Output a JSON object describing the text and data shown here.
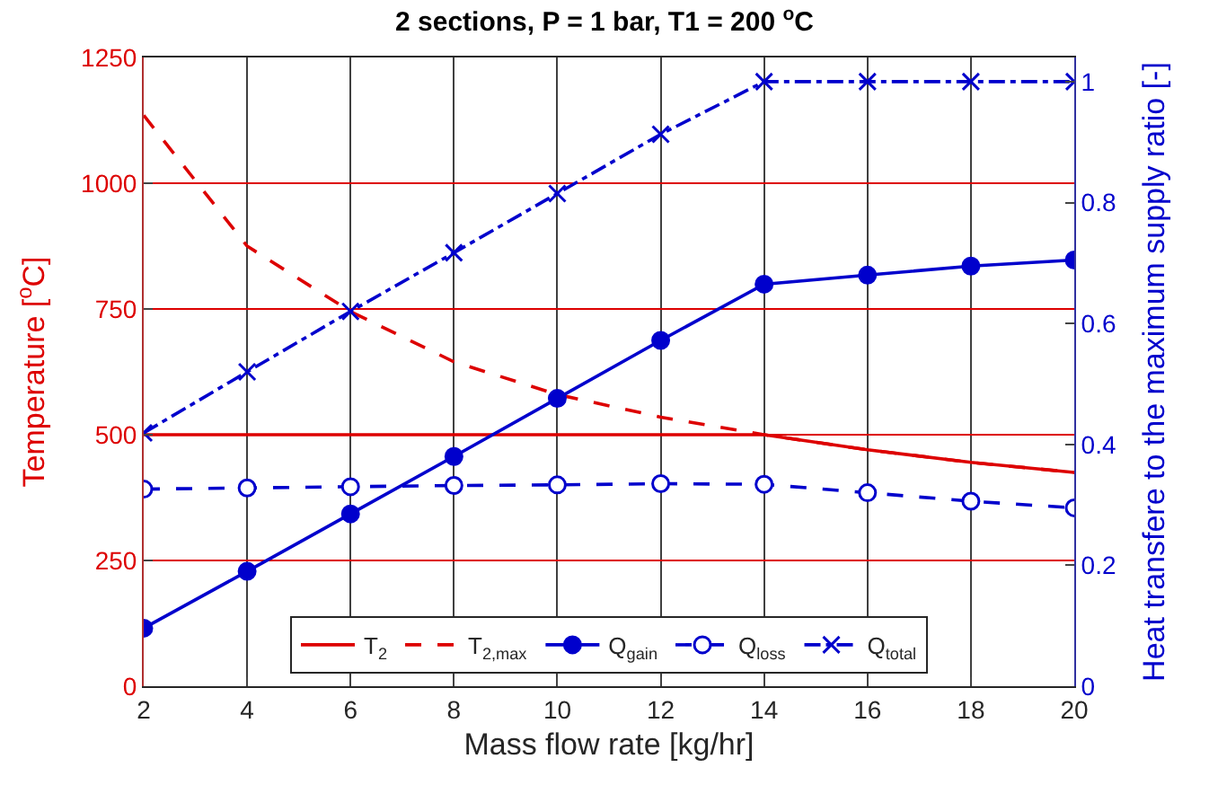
{
  "chart_data": {
    "type": "line",
    "title": "2 sections, P = 1 bar, T1 = 200 $^{o}$C",
    "xlabel": "Mass flow rate [kg/hr]",
    "ylabel": "Temperature [$^{o}$C]",
    "y2label": "Heat transfere to the maximum supply ratio [-]",
    "x": [
      2,
      4,
      6,
      8,
      10,
      12,
      14,
      16,
      18,
      20
    ],
    "xlim": [
      2,
      20
    ],
    "xticks": [
      2,
      4,
      6,
      8,
      10,
      12,
      14,
      16,
      18,
      20
    ],
    "ylim": [
      0,
      1250
    ],
    "yticks": [
      0,
      250,
      500,
      750,
      1000,
      1250
    ],
    "y2lim": [
      0,
      1.04
    ],
    "y2ticks": [
      0,
      0.2,
      0.4,
      0.6,
      0.8,
      1
    ],
    "grid": true,
    "legend": "bottom",
    "series": [
      {
        "name": "T$_{2}$",
        "color": "#dd0000",
        "values": [
          500,
          500,
          500,
          500,
          500,
          500,
          500,
          470,
          445,
          425
        ],
        "marker": "none",
        "line_style": "solid"
      },
      {
        "name": "T$_{2,max}$",
        "color": "#dd0000",
        "values": [
          1135,
          875,
          745,
          645,
          580,
          535,
          500,
          470,
          445,
          425
        ],
        "marker": "none",
        "line_style": "dashed"
      },
      {
        "name": "Q$_{gain}$",
        "color": "#0000cc",
        "axis": "y2",
        "values": [
          0.096,
          0.19,
          0.285,
          0.38,
          0.476,
          0.572,
          0.665,
          0.68,
          0.695,
          0.705
        ],
        "marker": "circle",
        "line_style": "solid"
      },
      {
        "name": "Q$_{loss}$",
        "color": "#0000cc",
        "axis": "y2",
        "values": [
          0.326,
          0.328,
          0.33,
          0.332,
          0.333,
          0.335,
          0.334,
          0.32,
          0.306,
          0.295
        ],
        "marker": "circle-open",
        "line_style": "dashed"
      },
      {
        "name": "Q$_{total}$",
        "color": "#0000cc",
        "axis": "y2",
        "values": [
          0.419,
          0.52,
          0.62,
          0.717,
          0.815,
          0.913,
          1,
          1,
          1,
          1
        ],
        "marker": "cross",
        "line_style": "dashdot"
      }
    ]
  }
}
